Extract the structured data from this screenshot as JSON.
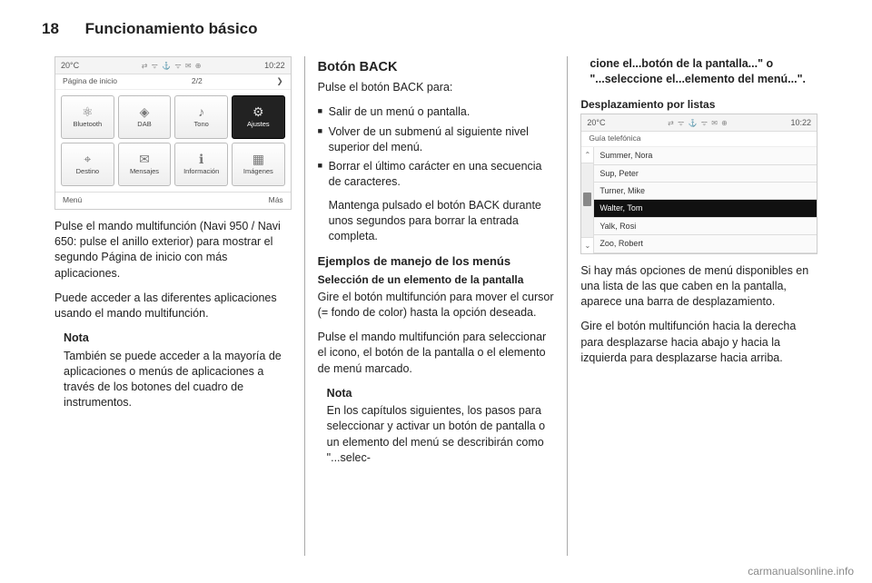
{
  "header": {
    "page_number": "18",
    "chapter_title": "Funcionamiento básico"
  },
  "screenshot1": {
    "topbar": {
      "temp": "20°C",
      "icons": "⇄  ᯤ  ⚓  ᯤ  ✉  ⊕",
      "time": "10:22"
    },
    "subbar": {
      "left": "Página de inicio",
      "center": "2/2",
      "right_icon": "❯"
    },
    "tiles": [
      {
        "icon": "⚛",
        "label": "Bluetooth",
        "selected": false
      },
      {
        "icon": "◈",
        "label": "DAB",
        "selected": false
      },
      {
        "icon": "♪",
        "label": "Tono",
        "selected": false
      },
      {
        "icon": "⚙",
        "label": "Ajustes",
        "selected": true
      },
      {
        "icon": "⌖",
        "label": "Destino",
        "selected": false
      },
      {
        "icon": "✉",
        "label": "Mensajes",
        "selected": false
      },
      {
        "icon": "ℹ",
        "label": "Información",
        "selected": false
      },
      {
        "icon": "▦",
        "label": "Imágenes",
        "selected": false
      }
    ],
    "botbar": {
      "left": "Menú",
      "right": "Más"
    }
  },
  "col1": {
    "p1": "Pulse el mando multifunción (Navi 950 / Navi 650: pulse el anillo exterior) para mostrar el segundo Página de inicio con más aplicaciones.",
    "p2": "Puede acceder a las diferentes aplicaciones usando el mando multifunción.",
    "note_h": "Nota",
    "note_b": "También se puede acceder a la mayoría de aplicaciones o menús de aplicaciones a través de los botones del cuadro de instrumentos."
  },
  "col2": {
    "h3": "Botón BACK",
    "p1": "Pulse el botón BACK para:",
    "bullets": [
      "Salir de un menú o pantalla.",
      "Volver de un submenú al siguiente nivel superior del menú.",
      "Borrar el último carácter en una secuencia de caracteres."
    ],
    "p2": "Mantenga pulsado el botón BACK durante unos segundos para borrar la entrada completa.",
    "h4": "Ejemplos de manejo de los menús",
    "sub": "Selección de un elemento de la pantalla",
    "p3": "Gire el botón multifunción para mover el cursor (= fondo de color) hasta la opción deseada.",
    "p4": "Pulse el mando multifunción para seleccionar el icono, el botón de la pantalla o el elemento de menú marcado.",
    "note_h": "Nota",
    "note_b": "En los capítulos siguientes, los pasos para seleccionar y activar un botón de pantalla o un elemento del menú se describirán como \"...selec-"
  },
  "col3": {
    "p0": "cione el...botón de la pantalla...\" o \"...seleccione el...elemento del menú...\".",
    "sub": "Desplazamiento por listas"
  },
  "screenshot2": {
    "topbar": {
      "temp": "20°C",
      "icons": "⇄  ᯤ  ⚓  ᯤ  ✉  ⊕",
      "time": "10:22"
    },
    "subbar": {
      "left": "Guía telefónica"
    },
    "rows": [
      {
        "text": "Summer, Nora",
        "selected": false
      },
      {
        "text": "Sup, Peter",
        "selected": false
      },
      {
        "text": "Turner, Mike",
        "selected": false
      },
      {
        "text": "Walter, Tom",
        "selected": true
      },
      {
        "text": "Yalk, Rosi",
        "selected": false
      },
      {
        "text": "Zoo, Robert",
        "selected": false
      }
    ],
    "scroll": {
      "up": "⌃",
      "down": "⌄"
    }
  },
  "col3b": {
    "p1": "Si hay más opciones de menú disponibles en una lista de las que caben en la pantalla, aparece una barra de desplazamiento.",
    "p2": "Gire el botón multifunción hacia la derecha para desplazarse hacia abajo y hacia la izquierda para desplazarse hacia arriba."
  },
  "footer": {
    "link": "carmanualsonline.info"
  }
}
